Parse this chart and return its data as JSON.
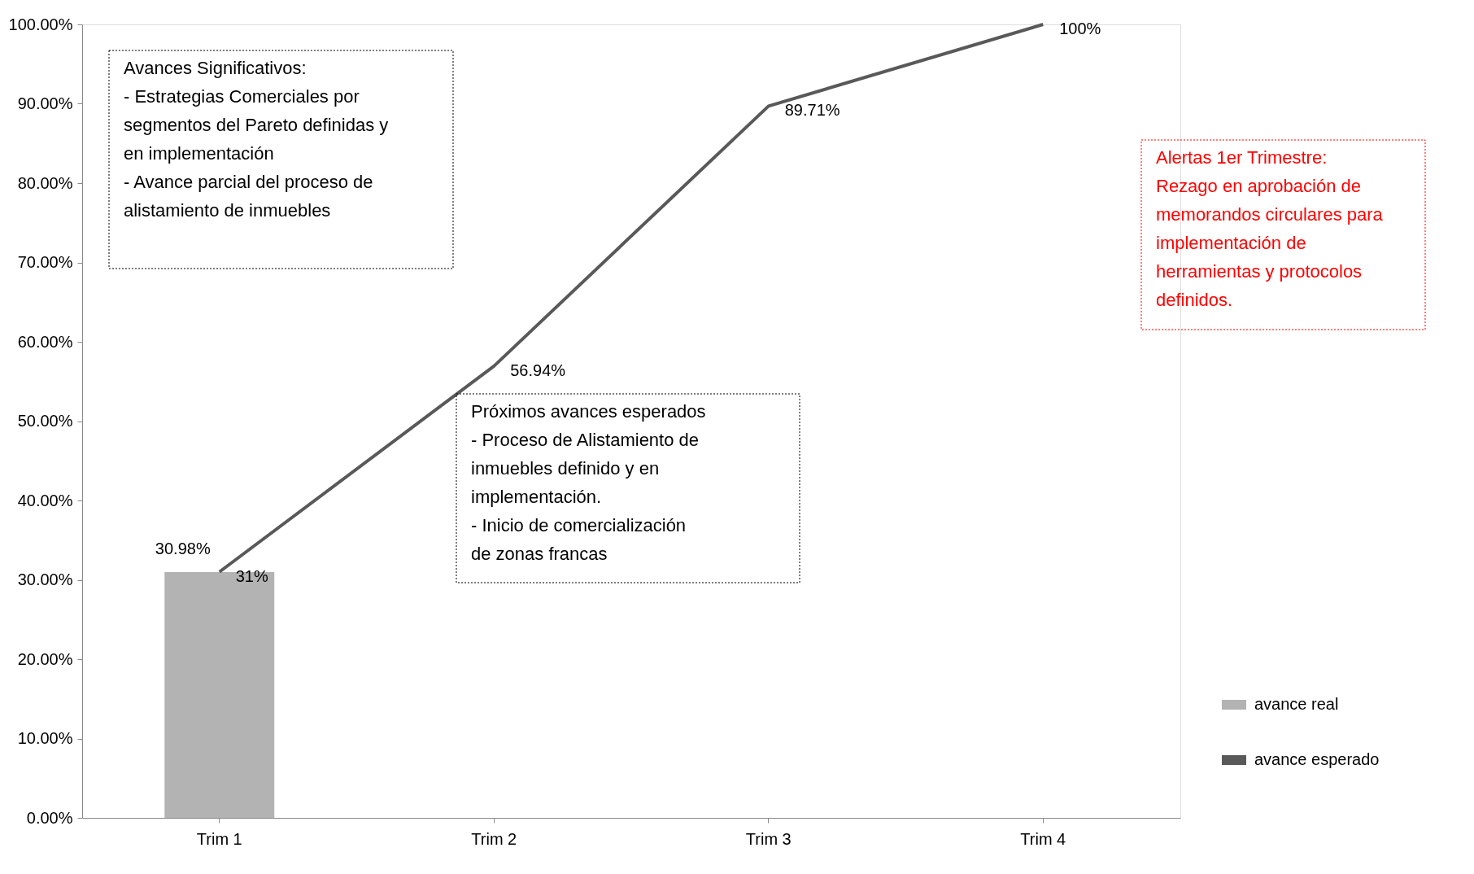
{
  "chart_data": {
    "type": "bar",
    "categories": [
      "Trim 1",
      "Trim 2",
      "Trim 3",
      "Trim 4"
    ],
    "series": [
      {
        "name": "avance real",
        "color": "#b3b3b3",
        "values": [
          30.98,
          null,
          null,
          null
        ],
        "value_labels": [
          "30.98%",
          null,
          null,
          null
        ]
      },
      {
        "name": "avance esperado",
        "type": "line",
        "color": "#595959",
        "values": [
          31,
          56.94,
          89.71,
          100
        ],
        "value_labels": [
          "31%",
          "56.94%",
          "89.71%",
          "100%"
        ]
      }
    ],
    "ylim": [
      0,
      100
    ],
    "yticks": [
      {
        "value": 0,
        "label": "0.00%"
      },
      {
        "value": 10,
        "label": "10.00%"
      },
      {
        "value": 20,
        "label": "20.00%"
      },
      {
        "value": 30,
        "label": "30.00%"
      },
      {
        "value": 40,
        "label": "40.00%"
      },
      {
        "value": 50,
        "label": "50.00%"
      },
      {
        "value": 60,
        "label": "60.00%"
      },
      {
        "value": 70,
        "label": "70.00%"
      },
      {
        "value": 80,
        "label": "80.00%"
      },
      {
        "value": 90,
        "label": "90.00%"
      },
      {
        "value": 100,
        "label": "100.00%"
      }
    ],
    "grid": false,
    "legend": "right",
    "marker": "none",
    "line_style": "solid",
    "annotations": [
      "Avances Significativos:\n- Estrategias Comerciales por segmentos del Pareto definidas y en implementación\n- Avance parcial del proceso de alistamiento de inmuebles",
      "Próximos avances esperados\n-   Proceso de Alistamiento de inmuebles definido y en implementación.\n-   Inicio de comercialización de zonas francas",
      "Alertas 1er Trimestre: Rezago en aprobación de memorandos circulares para implementación de herramientas y protocolos definidos."
    ]
  }
}
